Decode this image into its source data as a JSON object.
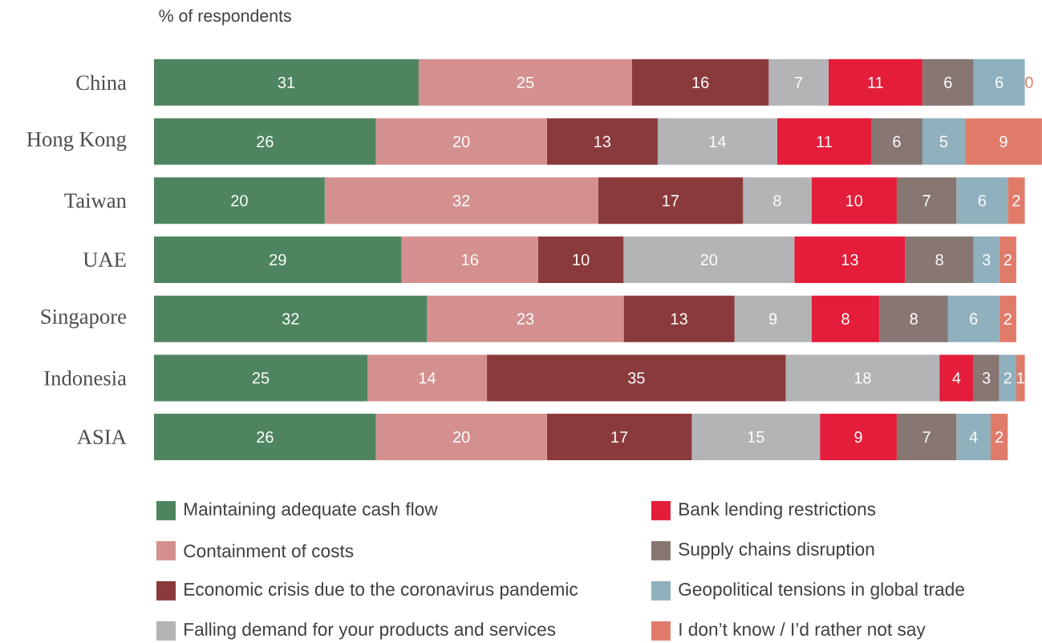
{
  "chart_data": {
    "type": "bar",
    "orientation": "horizontal",
    "stacked": true,
    "subtitle": "% of respondents",
    "categories": [
      "China",
      "Hong Kong",
      "Taiwan",
      "UAE",
      "Singapore",
      "Indonesia",
      "ASIA"
    ],
    "series": [
      {
        "name": "Maintaining adequate cash flow",
        "color": "#4e8560",
        "values": [
          31,
          26,
          20,
          29,
          32,
          25,
          26
        ]
      },
      {
        "name": "Containment of costs",
        "color": "#d4908e",
        "values": [
          25,
          20,
          32,
          16,
          23,
          14,
          20
        ]
      },
      {
        "name": "Economic crisis due to the coronavirus pandemic",
        "color": "#8b3a3c",
        "values": [
          16,
          13,
          17,
          10,
          13,
          35,
          17
        ]
      },
      {
        "name": "Falling demand for your products and services",
        "color": "#b2b4b5",
        "values": [
          7,
          14,
          8,
          20,
          9,
          18,
          15
        ]
      },
      {
        "name": "Bank lending restrictions",
        "color": "#e31d3a",
        "values": [
          11,
          11,
          10,
          13,
          8,
          4,
          9
        ]
      },
      {
        "name": "Supply chains disruption",
        "color": "#877672",
        "values": [
          6,
          6,
          7,
          8,
          8,
          3,
          7
        ]
      },
      {
        "name": "Geopolitical tensions in global trade",
        "color": "#8fb0bd",
        "values": [
          6,
          5,
          6,
          3,
          6,
          2,
          4
        ]
      },
      {
        "name": "I don’t know / I’d rather not say",
        "color": "#e07b6a",
        "values": [
          0,
          9,
          2,
          2,
          2,
          1,
          2
        ]
      }
    ],
    "data_labels": true,
    "tick_labels": "y",
    "grid": false,
    "legend": "bottom"
  }
}
